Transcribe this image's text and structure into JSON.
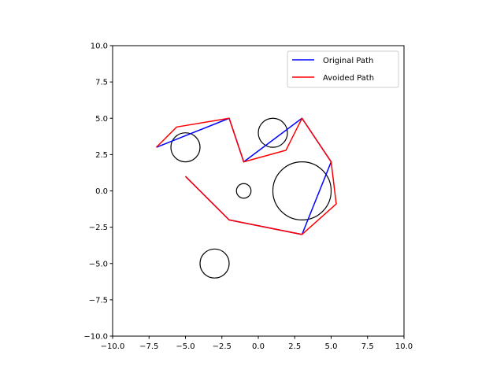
{
  "chart_data": {
    "type": "line",
    "title": "",
    "xlabel": "",
    "ylabel": "",
    "xlim": [
      -10,
      10
    ],
    "ylim": [
      -10,
      10
    ],
    "xticks": [
      "−10.0",
      "−7.5",
      "−5.0",
      "−2.5",
      "0.0",
      "2.5",
      "5.0",
      "7.5",
      "10.0"
    ],
    "yticks": [
      "−10.0",
      "−7.5",
      "−5.0",
      "−2.5",
      "0.0",
      "2.5",
      "5.0",
      "7.5",
      "10.0"
    ],
    "tick_values": [
      -10,
      -7.5,
      -5,
      -2.5,
      0,
      2.5,
      5,
      7.5,
      10
    ],
    "grid": false,
    "legend_position": "top-right",
    "series": [
      {
        "name": "Original Path",
        "color": "#0000ff",
        "points": [
          [
            -7,
            3
          ],
          [
            -2,
            5
          ],
          [
            -1,
            2
          ],
          [
            3,
            5
          ],
          [
            5,
            2
          ],
          [
            3,
            -3
          ],
          [
            -2,
            -2
          ],
          [
            -5,
            1
          ]
        ]
      },
      {
        "name": "Avoided Path",
        "color": "#ff0000",
        "points": [
          [
            -7,
            3
          ],
          [
            -5.6,
            4.4
          ],
          [
            -2,
            5
          ],
          [
            -1,
            2
          ],
          [
            1.9,
            2.8
          ],
          [
            3,
            5
          ],
          [
            5,
            2
          ],
          [
            5.35,
            -0.9
          ],
          [
            3,
            -3
          ],
          [
            -2,
            -2
          ],
          [
            -5,
            1
          ]
        ]
      }
    ],
    "obstacles": [
      {
        "center": [
          -5,
          3
        ],
        "radius": 1
      },
      {
        "center": [
          1,
          4
        ],
        "radius": 1
      },
      {
        "center": [
          -1,
          0
        ],
        "radius": 0.5
      },
      {
        "center": [
          3,
          0
        ],
        "radius": 2
      },
      {
        "center": [
          -3,
          -5
        ],
        "radius": 1
      }
    ]
  }
}
